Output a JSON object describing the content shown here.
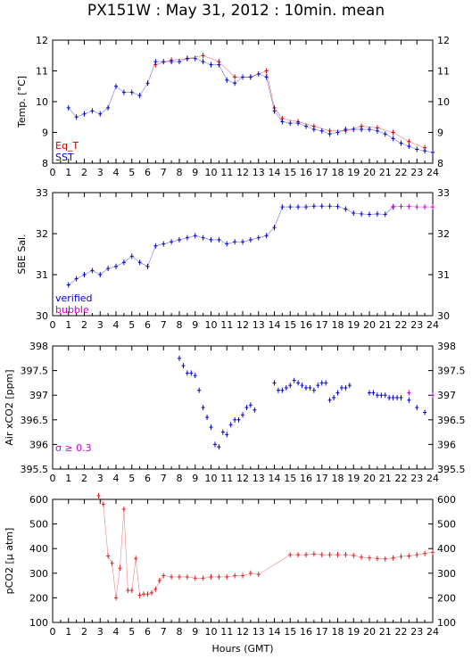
{
  "title": "PX151W : May 31, 2012 : 10min. mean",
  "xlabel": "Hours (GMT)",
  "x_ticks": [
    0,
    1,
    2,
    3,
    4,
    5,
    6,
    7,
    8,
    9,
    10,
    11,
    12,
    13,
    14,
    15,
    16,
    17,
    18,
    19,
    20,
    21,
    22,
    23,
    24
  ],
  "colors": {
    "eqt": "#cc0000",
    "sst": "#0000cc",
    "verified": "#0000cc",
    "bubble": "#cc00cc",
    "flag": "#cc00cc",
    "pco2": "#e02020"
  },
  "chart_data": [
    {
      "type": "line",
      "ylabel": "Temp. [°C]",
      "xlim": [
        0,
        24
      ],
      "ylim": [
        8,
        12
      ],
      "y_ticks": [
        8,
        9,
        10,
        11,
        12
      ],
      "legend": [
        "Eq_T",
        "SST"
      ],
      "legend_position": "bottom-left",
      "series": [
        {
          "name": "Eq_T",
          "color": "#cc0000",
          "x": [
            6.5,
            7.5,
            8.5,
            9.5,
            10.5,
            11.5,
            12.5,
            13.5,
            14.0,
            14.5,
            15.5,
            16.5,
            17.5,
            18.5,
            19.5,
            20.5,
            21.5,
            22.5,
            23.5
          ],
          "y": [
            11.2,
            11.35,
            11.4,
            11.5,
            11.3,
            10.8,
            10.8,
            11.0,
            9.8,
            9.45,
            9.35,
            9.2,
            9.05,
            9.05,
            9.2,
            9.15,
            9.0,
            8.7,
            8.5
          ]
        },
        {
          "name": "SST",
          "color": "#0000cc",
          "x": [
            1.0,
            1.5,
            2.0,
            2.5,
            3.0,
            3.5,
            4.0,
            4.5,
            5.0,
            5.5,
            6.0,
            6.5,
            7.0,
            7.5,
            8.0,
            8.5,
            9.0,
            9.5,
            10.0,
            10.5,
            11.0,
            11.5,
            12.0,
            12.5,
            13.0,
            13.5,
            14.0,
            14.5,
            15.0,
            15.5,
            16.0,
            16.5,
            17.0,
            17.5,
            18.0,
            18.5,
            19.0,
            19.5,
            20.0,
            20.5,
            21.0,
            21.5,
            22.0,
            22.5,
            23.0,
            23.5,
            24.0
          ],
          "y": [
            9.8,
            9.5,
            9.6,
            9.7,
            9.6,
            9.8,
            10.5,
            10.3,
            10.3,
            10.2,
            10.6,
            11.3,
            11.3,
            11.3,
            11.3,
            11.4,
            11.4,
            11.3,
            11.2,
            11.2,
            10.7,
            10.6,
            10.8,
            10.8,
            10.9,
            10.8,
            9.7,
            9.35,
            9.3,
            9.3,
            9.2,
            9.1,
            9.05,
            8.95,
            9.0,
            9.1,
            9.1,
            9.1,
            9.1,
            9.05,
            8.95,
            8.8,
            8.65,
            8.55,
            8.45,
            8.4,
            8.35
          ]
        }
      ]
    },
    {
      "type": "line",
      "ylabel": "SBE Sal.",
      "xlim": [
        0,
        24
      ],
      "ylim": [
        30,
        33
      ],
      "y_ticks": [
        30,
        31,
        32,
        33
      ],
      "legend": [
        "verified",
        "bubble"
      ],
      "legend_position": "bottom-left",
      "series": [
        {
          "name": "verified",
          "color": "#0000cc",
          "x": [
            1.0,
            1.5,
            2.0,
            2.5,
            3.0,
            3.5,
            4.0,
            4.5,
            5.0,
            5.5,
            6.0,
            6.5,
            7.0,
            7.5,
            8.0,
            8.5,
            9.0,
            9.5,
            10.0,
            10.5,
            11.0,
            11.5,
            12.0,
            12.5,
            13.0,
            13.5,
            14.0,
            14.5,
            15.0,
            15.5,
            16.0,
            16.5,
            17.0,
            17.5,
            18.0,
            18.5,
            19.0,
            19.5,
            20.0,
            20.5,
            21.0,
            21.5
          ],
          "y": [
            30.75,
            30.9,
            31.0,
            31.1,
            31.0,
            31.15,
            31.2,
            31.3,
            31.45,
            31.3,
            31.2,
            31.7,
            31.75,
            31.8,
            31.85,
            31.9,
            31.95,
            31.9,
            31.85,
            31.85,
            31.75,
            31.8,
            31.8,
            31.85,
            31.9,
            31.95,
            32.15,
            32.65,
            32.65,
            32.65,
            32.65,
            32.67,
            32.67,
            32.67,
            32.66,
            32.6,
            32.5,
            32.48,
            32.47,
            32.48,
            32.47,
            32.65
          ]
        },
        {
          "name": "bubble",
          "color": "#cc00cc",
          "x": [
            21.5,
            22.0,
            22.5,
            23.0,
            23.5,
            24.0
          ],
          "y": [
            32.66,
            32.66,
            32.66,
            32.65,
            32.65,
            32.65
          ]
        }
      ]
    },
    {
      "type": "scatter",
      "ylabel": "Air xCO2 [ppm]",
      "xlim": [
        0,
        24
      ],
      "ylim": [
        395.5,
        398
      ],
      "y_ticks": [
        395.5,
        396,
        396.5,
        397,
        397.5,
        398
      ],
      "annotation": "σ ≥ 0.3",
      "series": [
        {
          "name": "",
          "color": "#0000cc",
          "x": [
            8.0,
            8.25,
            8.5,
            8.75,
            9.0,
            9.25,
            9.5,
            9.75,
            10.0,
            10.25,
            10.5,
            10.75,
            11.0,
            11.25,
            11.5,
            11.75,
            12.0,
            12.25,
            12.5,
            12.75,
            14.0,
            14.25,
            14.5,
            14.75,
            15.0,
            15.25,
            15.5,
            15.75,
            16.0,
            16.25,
            16.5,
            16.75,
            17.0,
            17.25,
            17.5,
            17.75,
            18.0,
            18.25,
            18.5,
            18.75,
            20.0,
            20.25,
            20.5,
            20.75,
            21.0,
            21.25,
            21.5,
            21.75,
            22.0,
            22.5,
            23.0,
            23.5
          ],
          "y": [
            397.75,
            397.6,
            397.45,
            397.45,
            397.4,
            397.1,
            396.75,
            396.55,
            396.35,
            396.0,
            395.95,
            396.25,
            396.2,
            396.4,
            396.5,
            396.5,
            396.6,
            396.75,
            396.8,
            396.7,
            397.25,
            397.1,
            397.1,
            397.15,
            397.2,
            397.3,
            397.25,
            397.2,
            397.15,
            397.15,
            397.1,
            397.2,
            397.25,
            397.25,
            396.9,
            396.95,
            397.05,
            397.15,
            397.15,
            397.2,
            397.05,
            397.05,
            397.0,
            397.0,
            397.0,
            396.95,
            396.95,
            396.95,
            396.95,
            396.9,
            396.75,
            396.65
          ]
        },
        {
          "name": "",
          "color": "#cc00cc",
          "x": [
            22.5,
            24.0
          ],
          "y": [
            397.05,
            397.0
          ]
        }
      ]
    },
    {
      "type": "line",
      "ylabel": "pCO2 [μ atm]",
      "xlim": [
        0,
        24
      ],
      "ylim": [
        100,
        600
      ],
      "y_ticks": [
        100,
        200,
        300,
        400,
        500,
        600
      ],
      "series": [
        {
          "name": "",
          "color": "#e02020",
          "x": [
            2.9,
            3.2,
            3.5,
            3.75,
            4.0,
            4.25,
            4.5,
            4.75,
            5.0,
            5.25,
            5.5,
            5.75,
            6.0,
            6.25,
            6.5,
            6.75,
            7.0,
            7.5,
            8.0,
            8.5,
            9.0,
            9.5,
            10.0,
            10.5,
            11.0,
            11.5,
            12.0,
            12.5,
            13.0,
            15.0,
            15.5,
            16.0,
            16.5,
            17.0,
            17.5,
            18.0,
            18.5,
            19.0,
            19.5,
            20.0,
            20.5,
            21.0,
            21.5,
            22.0,
            22.5,
            23.0,
            23.5,
            24.0
          ],
          "y": [
            615,
            580,
            370,
            340,
            200,
            320,
            560,
            230,
            230,
            360,
            210,
            215,
            215,
            220,
            235,
            270,
            290,
            285,
            285,
            285,
            280,
            280,
            285,
            285,
            285,
            290,
            290,
            300,
            295,
            375,
            375,
            375,
            378,
            375,
            375,
            375,
            375,
            372,
            365,
            362,
            360,
            358,
            362,
            368,
            370,
            375,
            380,
            385
          ]
        }
      ]
    }
  ]
}
